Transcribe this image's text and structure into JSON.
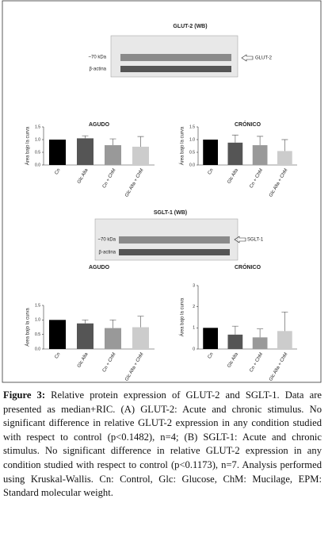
{
  "blots": [
    {
      "title": "GLUT-2 (WB)",
      "band_label": "~70 kDa",
      "control_label": "β-actina",
      "target_label": "GLUT-2"
    },
    {
      "title": "SGLT-1 (WB)",
      "band_label": "~70 kDa",
      "control_label": "β-actina",
      "target_label": "SGLT-1"
    }
  ],
  "chart_data": [
    {
      "type": "bar",
      "title": "AGUDO",
      "y_label": "Área bajo la curva",
      "categories": [
        "Cn",
        "Glc Alta",
        "Cn + ChM",
        "Glc Alta + ChM"
      ],
      "values": [
        1.0,
        1.05,
        0.78,
        0.72
      ],
      "errors": [
        0,
        0.1,
        0.25,
        0.4
      ],
      "colors": [
        "#000000",
        "#555555",
        "#999999",
        "#cccccc"
      ],
      "ylim": [
        0,
        1.5
      ],
      "yticks": [
        {
          "value": 0,
          "label": "0.0"
        },
        {
          "value": 0.5,
          "label": "0.5"
        },
        {
          "value": 1,
          "label": "1.0"
        },
        {
          "value": 1.5,
          "label": "1.5"
        }
      ]
    },
    {
      "type": "bar",
      "title": "CRÓNICO",
      "y_label": "Área bajo la curva",
      "categories": [
        "Cn",
        "Glc Alta",
        "Cn + ChM",
        "Glc Alta + ChM"
      ],
      "values": [
        1.0,
        0.88,
        0.78,
        0.55
      ],
      "errors": [
        0,
        0.3,
        0.35,
        0.45
      ],
      "colors": [
        "#000000",
        "#555555",
        "#999999",
        "#cccccc"
      ],
      "ylim": [
        0,
        1.5
      ],
      "yticks": [
        {
          "value": 0,
          "label": "0.0"
        },
        {
          "value": 0.5,
          "label": "0.5"
        },
        {
          "value": 1,
          "label": "1.0"
        },
        {
          "value": 1.5,
          "label": "1.5"
        }
      ]
    },
    {
      "type": "bar",
      "title": "AGUDO",
      "y_label": "Área bajo la curva",
      "categories": [
        "Cn",
        "Glc Alta",
        "Cn + ChM",
        "Glc Alta + ChM"
      ],
      "values": [
        1.0,
        0.88,
        0.72,
        0.75
      ],
      "errors": [
        0,
        0.12,
        0.28,
        0.38
      ],
      "colors": [
        "#000000",
        "#555555",
        "#999999",
        "#cccccc"
      ],
      "ylim": [
        0,
        1.5
      ],
      "yticks": [
        {
          "value": 0,
          "label": "0.0"
        },
        {
          "value": 0.5,
          "label": "0.5"
        },
        {
          "value": 1,
          "label": "1.0"
        },
        {
          "value": 1.5,
          "label": "1.5"
        }
      ]
    },
    {
      "type": "bar",
      "title": "CRÓNICO",
      "y_label": "Área bajo la curva",
      "categories": [
        "Cn",
        "Glc Alta",
        "Cn + ChM",
        "Glc Alta + ChM"
      ],
      "values": [
        1.0,
        0.68,
        0.55,
        0.85
      ],
      "errors": [
        0,
        0.4,
        0.4,
        0.9
      ],
      "colors": [
        "#000000",
        "#555555",
        "#999999",
        "#cccccc"
      ],
      "ylim": [
        0,
        3
      ],
      "yticks": [
        0,
        1,
        2,
        3
      ]
    }
  ],
  "caption": {
    "label": "Figure 3:",
    "text": "Relative protein expression of GLUT-2 and SGLT-1. Data are presented as median+RIC. (A) GLUT-2: Acute and chronic stimulus. No significant difference in relative GLUT-2 expression in any condition studied with respect to control (p<0.1482), n=4; (B) SGLT-1: Acute and chronic stimulus. No significant difference in relative GLUT-2 expression in any condition studied with respect to control (p<0.1173), n=7. Analysis performed using Kruskal-Wallis. Cn: Control, Glc: Glucose, ChM: Mucilage, EPM: Standard molecular weight."
  }
}
